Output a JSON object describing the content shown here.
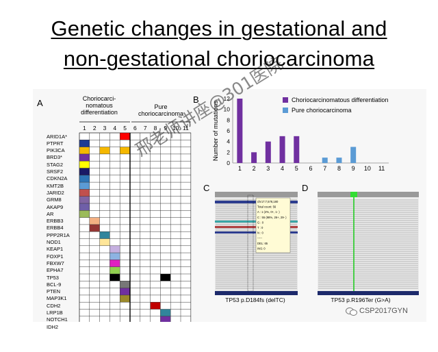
{
  "title_line1": "Genetic changes in gestational and",
  "title_line2": "non-gestational choriocarcinoma",
  "panel_a": {
    "label": "A",
    "header_left": "Choriocarci-\nnomatous\ndifferentiation",
    "header_right": "Pure\nchoriocarcinoma",
    "columns": [
      "1",
      "2",
      "3",
      "4",
      "5",
      "6",
      "7",
      "8",
      "9",
      "10",
      "11"
    ],
    "genes": [
      "ARID1A*",
      "PTPRT",
      "PIK3CA",
      "BRD3*",
      "STAG2",
      "SRSF2",
      "CDKN2A",
      "KMT2B",
      "JARID2",
      "GRM8",
      "AKAP9",
      "AR",
      "ERBB3",
      "ERBB4",
      "PPP2R1A",
      "NOD1",
      "KEAP1",
      "FOXP1",
      "FBXW7",
      "EPHA7",
      "TP53",
      "BCL-9",
      "PTEN",
      "MAP3K1",
      "CDH2",
      "LRP1B",
      "NOTCH1",
      "IDH2"
    ],
    "cells": [
      {
        "row": 0,
        "col": 5,
        "color": "#ff0000"
      },
      {
        "row": 1,
        "col": 1,
        "color": "#1f3a93"
      },
      {
        "row": 2,
        "col": 1,
        "color": "#f5b800"
      },
      {
        "row": 2,
        "col": 3,
        "color": "#f5b800"
      },
      {
        "row": 2,
        "col": 5,
        "color": "#f5b800"
      },
      {
        "row": 3,
        "col": 1,
        "color": "#7030a0"
      },
      {
        "row": 4,
        "col": 1,
        "color": "#ffff00"
      },
      {
        "row": 5,
        "col": 1,
        "color": "#1a1a66"
      },
      {
        "row": 6,
        "col": 1,
        "color": "#2e75b6"
      },
      {
        "row": 7,
        "col": 1,
        "color": "#5b9bd5"
      },
      {
        "row": 8,
        "col": 1,
        "color": "#c0504d"
      },
      {
        "row": 9,
        "col": 1,
        "color": "#8064a2"
      },
      {
        "row": 10,
        "col": 1,
        "color": "#6f5fa8"
      },
      {
        "row": 11,
        "col": 1,
        "color": "#9bbb59"
      },
      {
        "row": 12,
        "col": 2,
        "color": "#f4b183"
      },
      {
        "row": 13,
        "col": 2,
        "color": "#943634"
      },
      {
        "row": 14,
        "col": 3,
        "color": "#31859c"
      },
      {
        "row": 15,
        "col": 3,
        "color": "#ffe699"
      },
      {
        "row": 16,
        "col": 4,
        "color": "#c5b0e0"
      },
      {
        "row": 17,
        "col": 4,
        "color": "#8db3e2"
      },
      {
        "row": 18,
        "col": 4,
        "color": "#e020c0"
      },
      {
        "row": 19,
        "col": 4,
        "color": "#92d050"
      },
      {
        "row": 20,
        "col": 4,
        "color": "#000000"
      },
      {
        "row": 20,
        "col": 9,
        "color": "#000000"
      },
      {
        "row": 21,
        "col": 5,
        "color": "#777777"
      },
      {
        "row": 22,
        "col": 5,
        "color": "#7030a0"
      },
      {
        "row": 23,
        "col": 5,
        "color": "#9c8a2c"
      },
      {
        "row": 24,
        "col": 8,
        "color": "#c00000"
      },
      {
        "row": 25,
        "col": 9,
        "color": "#31869b"
      },
      {
        "row": 26,
        "col": 9,
        "color": "#7030a0"
      },
      {
        "row": 27,
        "col": 7,
        "color": "#17375e"
      }
    ]
  },
  "panel_b": {
    "label": "B",
    "chart_data": {
      "type": "bar",
      "categories": [
        "1",
        "2",
        "3",
        "4",
        "5",
        "6",
        "7",
        "8",
        "9",
        "10",
        "11"
      ],
      "series": [
        {
          "name": "Choriocarcinomatous differentiation",
          "color": "#7030a0",
          "values": [
            12,
            2,
            4,
            5,
            5,
            0,
            0,
            0,
            0,
            0,
            0
          ]
        },
        {
          "name": "Pure choriocarcinoma",
          "color": "#5b9bd5",
          "values": [
            0,
            0,
            0,
            0,
            0,
            0,
            1,
            1,
            3,
            0,
            0
          ]
        }
      ],
      "ylabel": "Number of mutations",
      "yticks": [
        0,
        2,
        4,
        6,
        8,
        10,
        12
      ],
      "ylim": [
        0,
        12
      ],
      "legend": "top-right"
    }
  },
  "panel_c": {
    "label": "C",
    "caption": "TP53 p.D184fs (delTC)",
    "popup_lines": [
      "chr17:7,578,180",
      "Total count: 56",
      "A : 1 (2%, 0+, 1- )",
      "C : 55 (98%, 26+, 29- )",
      "G : 0",
      "T : 0",
      "N : 0",
      "-----",
      "DEL: 65",
      "INS: 0"
    ]
  },
  "panel_d": {
    "label": "D",
    "caption": "TP53 p.R196Ter (G>A)"
  },
  "watermark": "邢老师讲座@301医院",
  "footer": "CSP2017GYN"
}
